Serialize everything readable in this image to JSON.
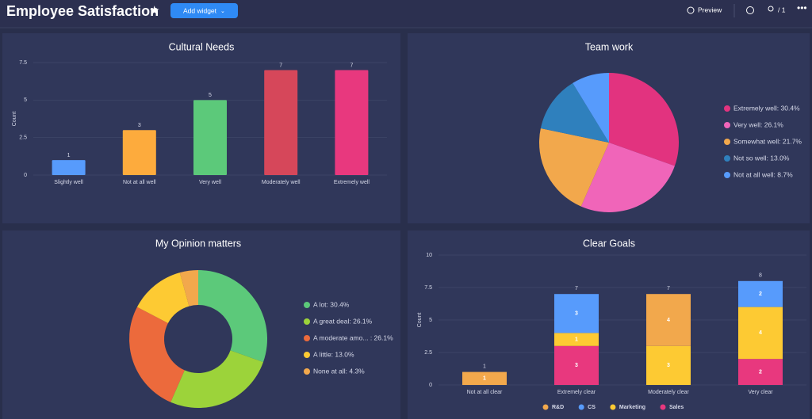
{
  "header": {
    "title": "Employee Satisfaction",
    "add_button": "Add widget",
    "preview": "Preview",
    "members": "/ 1"
  },
  "chart_data": [
    {
      "type": "bar",
      "title": "Cultural Needs",
      "ylabel": "Count",
      "categories": [
        "Slightly well",
        "Not at all well",
        "Very well",
        "Moderately well",
        "Extremely well"
      ],
      "values": [
        1,
        3,
        5,
        7,
        7
      ],
      "colors": [
        "#579bfc",
        "#fdab3d",
        "#5cc97a",
        "#d6475a",
        "#e8387e"
      ],
      "ylim": [
        0,
        7.5
      ],
      "yticks": [
        0,
        2.5,
        5,
        7.5
      ],
      "grid": true
    },
    {
      "type": "pie",
      "title": "Team work",
      "labels": [
        "Extremely well: 30.4%",
        "Very well: 26.1%",
        "Somewhat well: 21.7%",
        "Not so well: 13.0%",
        "Not at all well: 8.7%"
      ],
      "values": [
        30.4,
        26.1,
        21.7,
        13.0,
        8.7
      ],
      "colors": [
        "#e2337f",
        "#f065b9",
        "#f2a84c",
        "#2f80bd",
        "#579bfc"
      ]
    },
    {
      "type": "donut",
      "title": "My Opinion matters",
      "labels": [
        "A lot: 30.4%",
        "A great deal: 26.1%",
        "A moderate amo...  : 26.1%",
        "A little: 13.0%",
        "None at all: 4.3%"
      ],
      "values": [
        30.4,
        26.1,
        26.1,
        13.0,
        4.3
      ],
      "colors": [
        "#5cc97a",
        "#9cd33a",
        "#ec6a3c",
        "#fdca33",
        "#f2a84c"
      ]
    },
    {
      "type": "stacked_bar",
      "title": "Clear Goals",
      "ylabel": "Count",
      "categories": [
        "Not at all clear",
        "Extremely clear",
        "Moderately clear",
        "Very clear"
      ],
      "series": [
        {
          "name": "R&D",
          "color": "#f2a84c",
          "values": [
            1,
            null,
            4,
            null
          ]
        },
        {
          "name": "CS",
          "color": "#579bfc",
          "values": [
            null,
            3,
            null,
            2
          ]
        },
        {
          "name": "Marketing",
          "color": "#fdca33",
          "values": [
            null,
            1,
            3,
            4
          ]
        },
        {
          "name": "Sales",
          "color": "#e8387e",
          "values": [
            null,
            3,
            null,
            2
          ]
        }
      ],
      "totals": [
        1,
        7,
        7,
        8
      ],
      "ylim": [
        0,
        10
      ],
      "yticks": [
        0,
        2.5,
        5,
        7.5,
        10
      ],
      "grid": true
    }
  ]
}
